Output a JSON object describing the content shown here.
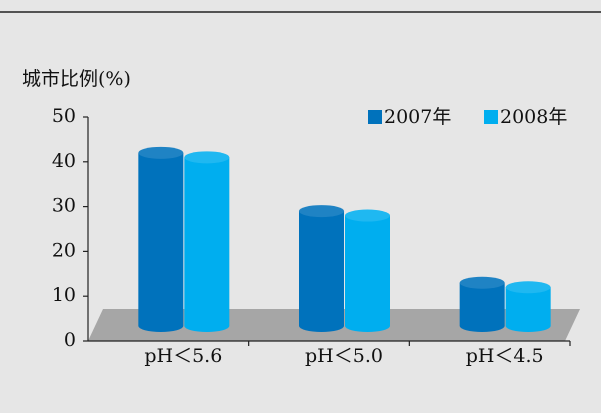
{
  "chart_data": {
    "type": "bar",
    "y_label": "城市比例(%)",
    "categories": [
      "pH＜5.6",
      "pH＜5.0",
      "pH＜4.5"
    ],
    "series": [
      {
        "name": "2007年",
        "color": "#0072bc",
        "values": [
          42,
          29,
          13
        ]
      },
      {
        "name": "2008年",
        "color": "#00aeef",
        "values": [
          41,
          28,
          12
        ]
      }
    ],
    "ylim": [
      0,
      50
    ],
    "yticks": [
      0,
      10,
      20,
      30,
      40,
      50
    ],
    "legend": "top-right"
  }
}
